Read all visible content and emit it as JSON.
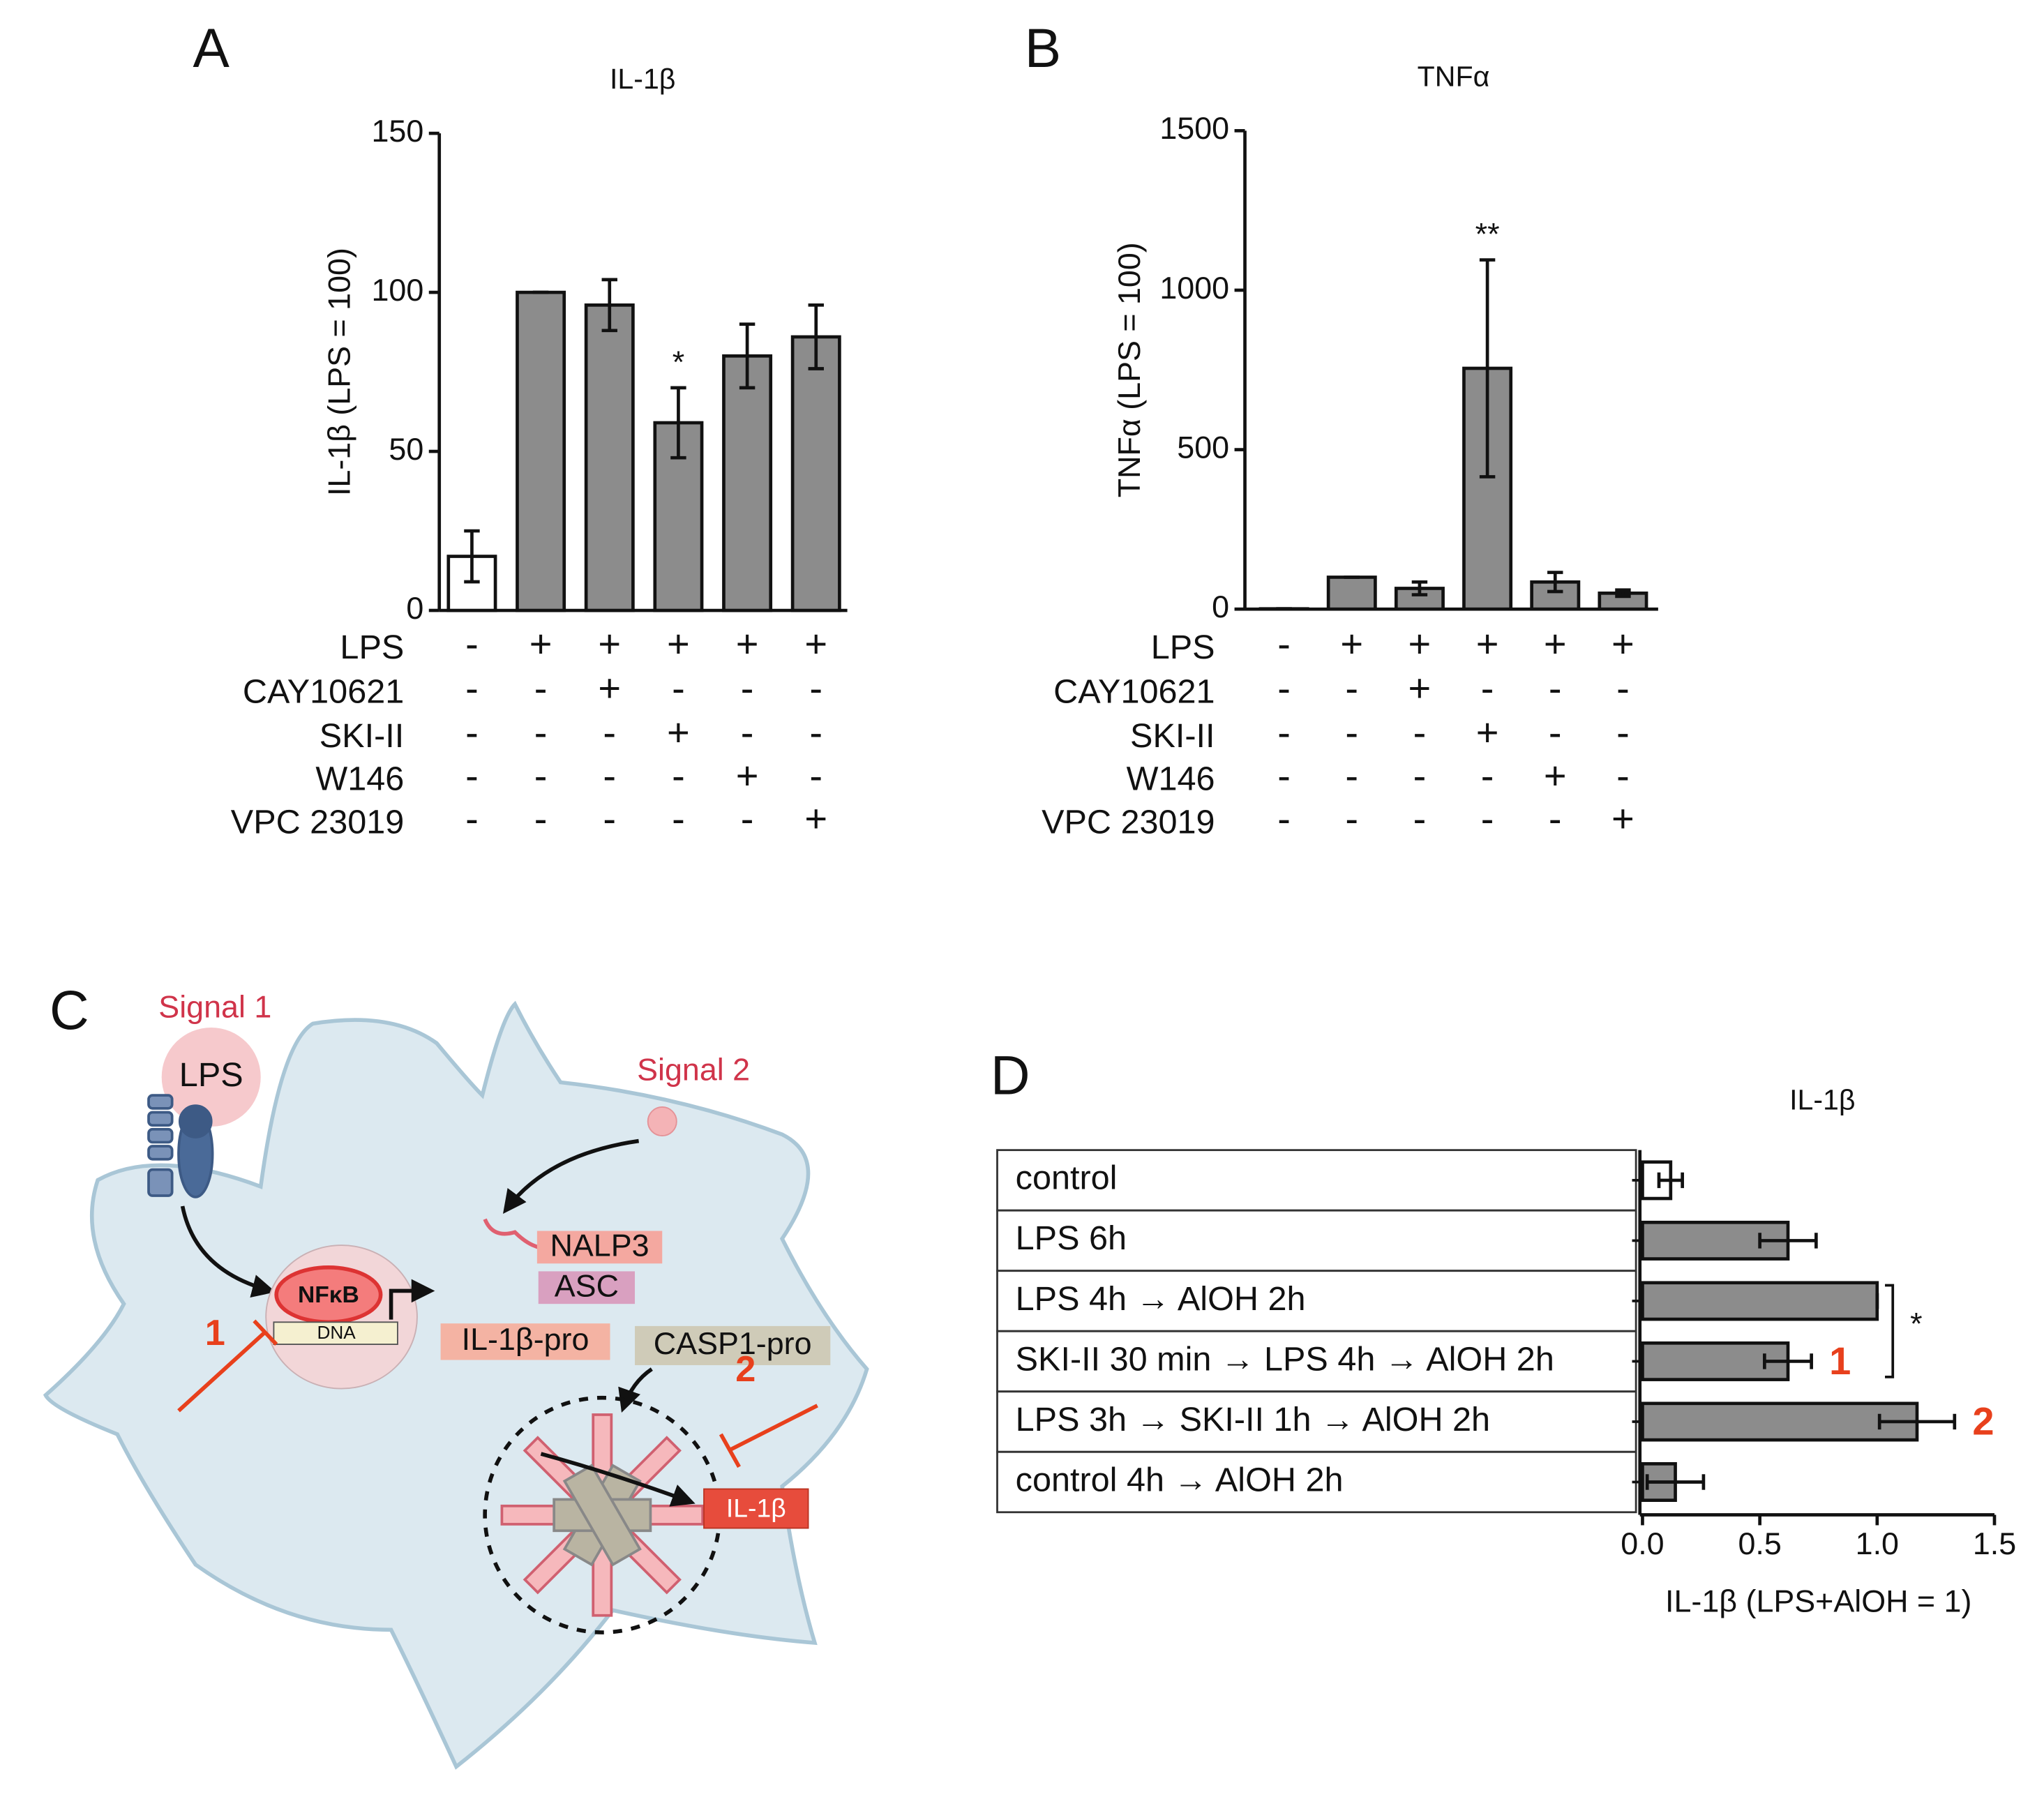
{
  "chart_data": [
    {
      "type": "bar",
      "panel": "A",
      "title": "IL-1β",
      "ylabel": "IL-1β (LPS = 100)",
      "ylim": [
        0,
        150
      ],
      "yticks": [
        0,
        50,
        100,
        150
      ],
      "values": [
        17,
        100,
        96,
        59,
        80,
        86
      ],
      "errors": [
        8,
        0,
        8,
        11,
        10,
        10
      ],
      "colors": [
        "#ffffff",
        "#8c8c8c",
        "#8c8c8c",
        "#8c8c8c",
        "#8c8c8c",
        "#8c8c8c"
      ],
      "value_annotations": [
        null,
        null,
        null,
        "*",
        null,
        null
      ],
      "treatments": [
        {
          "name": "LPS",
          "signs": [
            "-",
            "+",
            "+",
            "+",
            "+",
            "+"
          ]
        },
        {
          "name": "CAY10621",
          "signs": [
            "-",
            "-",
            "+",
            "-",
            "-",
            "-"
          ]
        },
        {
          "name": "SKI-II",
          "signs": [
            "-",
            "-",
            "-",
            "+",
            "-",
            "-"
          ]
        },
        {
          "name": "W146",
          "signs": [
            "-",
            "-",
            "-",
            "-",
            "+",
            "-"
          ]
        },
        {
          "name": "VPC 23019",
          "signs": [
            "-",
            "-",
            "-",
            "-",
            "-",
            "+"
          ]
        }
      ]
    },
    {
      "type": "bar",
      "panel": "B",
      "title": "TNFα",
      "ylabel": "TNFα (LPS = 100)",
      "ylim": [
        0,
        1500
      ],
      "yticks": [
        0,
        500,
        1000,
        1500
      ],
      "values": [
        1,
        100,
        65,
        755,
        85,
        50
      ],
      "errors": [
        0,
        0,
        20,
        340,
        30,
        10
      ],
      "colors": [
        "#ffffff",
        "#8c8c8c",
        "#8c8c8c",
        "#8c8c8c",
        "#8c8c8c",
        "#8c8c8c"
      ],
      "value_annotations": [
        null,
        null,
        null,
        "**",
        null,
        null
      ],
      "treatments": [
        {
          "name": "LPS",
          "signs": [
            "-",
            "+",
            "+",
            "+",
            "+",
            "+"
          ]
        },
        {
          "name": "CAY10621",
          "signs": [
            "-",
            "-",
            "+",
            "-",
            "-",
            "-"
          ]
        },
        {
          "name": "SKI-II",
          "signs": [
            "-",
            "-",
            "-",
            "+",
            "-",
            "-"
          ]
        },
        {
          "name": "W146",
          "signs": [
            "-",
            "-",
            "-",
            "-",
            "+",
            "-"
          ]
        },
        {
          "name": "VPC 23019",
          "signs": [
            "-",
            "-",
            "-",
            "-",
            "-",
            "+"
          ]
        }
      ]
    },
    {
      "type": "hbar",
      "panel": "D",
      "title": "IL-1β",
      "xlabel": "IL-1β (LPS+AlOH = 1)",
      "xlim": [
        0,
        1.5
      ],
      "xticks": [
        {
          "value": 0,
          "label": "0.0"
        },
        0.5,
        {
          "value": 1,
          "label": "1.0"
        },
        1.5
      ],
      "categories": [
        "control",
        "LPS 6h",
        "LPS 4h → AlOH 2h",
        "SKI-II 30 min → LPS 4h → AlOH 2h",
        "LPS 3h → SKI-II 1h → AlOH 2h",
        "control 4h → AlOH 2h"
      ],
      "values": [
        0.12,
        0.62,
        1.0,
        0.62,
        1.17,
        0.14
      ],
      "errors": [
        0.05,
        0.12,
        0,
        0.1,
        0.16,
        0.12
      ],
      "colors": [
        "#ffffff",
        "#8c8c8c",
        "#8c8c8c",
        "#8c8c8c",
        "#8c8c8c",
        "#8c8c8c"
      ],
      "value_annotations": [
        null,
        null,
        null,
        "1",
        "2",
        null
      ],
      "significance": "*"
    }
  ],
  "diagram": {
    "panel": "C",
    "signal1": "Signal 1",
    "lps": "LPS",
    "signal2": "Signal 2",
    "nfkb": "NFκB",
    "dna": "DNA",
    "nalp3": "NALP3",
    "asc": "ASC",
    "il1b_pro": "IL-1β-pro",
    "casp1_pro": "CASP1-pro",
    "il1b": "IL-1β",
    "inhibit1": "1",
    "inhibit2": "2"
  }
}
